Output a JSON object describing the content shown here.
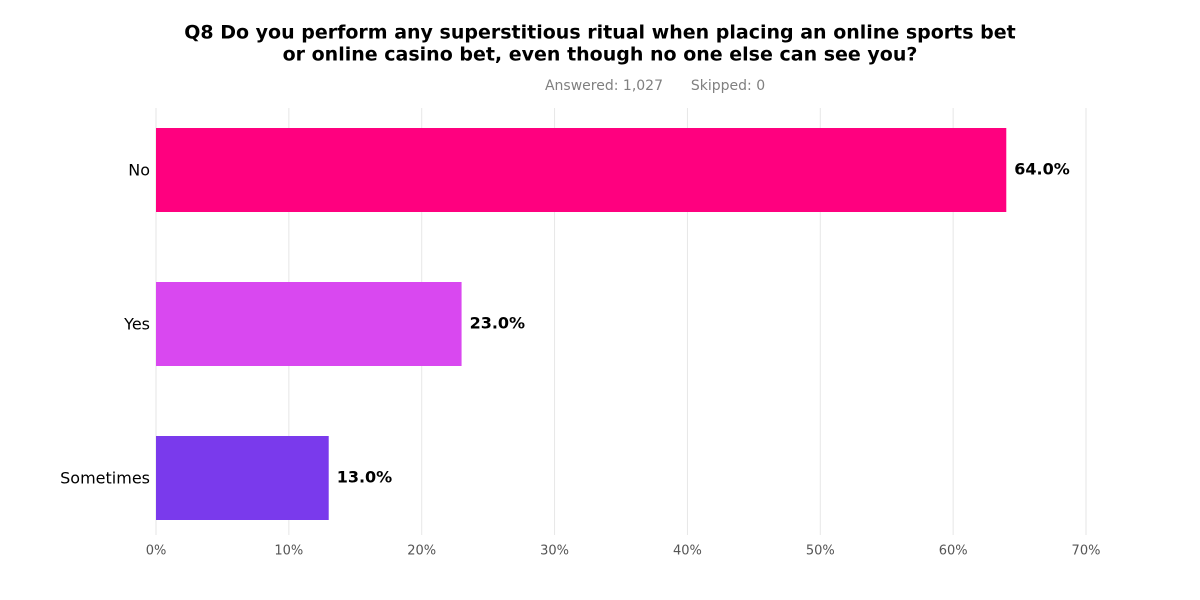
{
  "chart_data": {
    "type": "bar",
    "orientation": "horizontal",
    "title": [
      "Q8  Do you perform any superstitious ritual when placing an online sports bet",
      "or online casino bet, even though no one else can see you?"
    ],
    "answered": "Answered: 1,027",
    "skipped": "Skipped: 0",
    "categories": [
      "No",
      "Yes",
      "Sometimes"
    ],
    "values": [
      64.0,
      23.0,
      13.0
    ],
    "value_labels": [
      "64.0%",
      "23.0%",
      "13.0%"
    ],
    "colors": [
      "#ff007f",
      "#d948f0",
      "#7a3aec"
    ],
    "xlim": [
      0,
      70
    ],
    "xticks": [
      {
        "value": 0,
        "label": "0%"
      },
      {
        "value": 10,
        "label": "10%"
      },
      {
        "value": 20,
        "label": "20%"
      },
      {
        "value": 30,
        "label": "30%"
      },
      {
        "value": 40,
        "label": "40%"
      },
      {
        "value": 50,
        "label": "50%"
      },
      {
        "value": 60,
        "label": "60%"
      },
      {
        "value": 70,
        "label": "70%"
      }
    ],
    "grid": true
  }
}
